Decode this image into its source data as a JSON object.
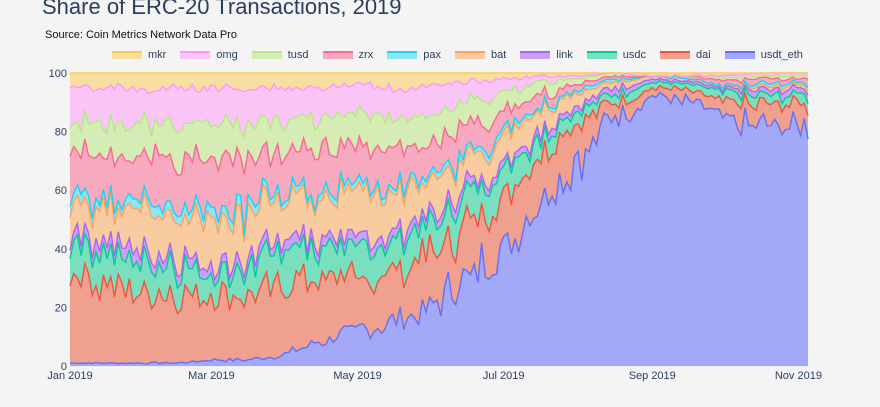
{
  "chart_data": {
    "type": "area",
    "stacked": true,
    "normalized": true,
    "title": "Share of ERC-20 Transactions, 2019",
    "subtitle": "Source: Coin Metrics Network Data Pro",
    "xlabel": "",
    "ylabel": "",
    "ylim": [
      0,
      100
    ],
    "yticks": [
      0,
      20,
      40,
      60,
      80,
      100
    ],
    "xticks": [
      "Jan 2019",
      "Mar 2019",
      "May 2019",
      "Jul 2019",
      "Sep 2019",
      "Nov 2019"
    ],
    "legend_position": "top",
    "grid": true,
    "x": [
      "2019-01-01",
      "2019-01-15",
      "2019-02-01",
      "2019-02-15",
      "2019-03-01",
      "2019-03-15",
      "2019-04-01",
      "2019-04-15",
      "2019-05-01",
      "2019-05-15",
      "2019-06-01",
      "2019-06-15",
      "2019-07-01",
      "2019-07-15",
      "2019-08-01",
      "2019-08-15",
      "2019-09-01",
      "2019-09-15",
      "2019-10-01",
      "2019-10-15",
      "2019-11-01",
      "2019-11-05"
    ],
    "series": [
      {
        "name": "usdt_eth",
        "color": "#636efa",
        "fill": "#a3a8f7",
        "values": [
          1,
          1,
          1,
          1,
          2,
          2,
          4,
          8,
          12,
          15,
          20,
          30,
          40,
          55,
          70,
          85,
          92,
          90,
          84,
          82,
          82,
          83
        ]
      },
      {
        "name": "dai",
        "color": "#ef553b",
        "fill": "#f0a08e",
        "values": [
          32,
          27,
          24,
          23,
          22,
          22,
          24,
          21,
          17,
          17,
          18,
          18,
          18,
          18,
          12,
          5,
          3,
          4,
          6,
          7,
          8,
          6
        ]
      },
      {
        "name": "usdc",
        "color": "#00cc96",
        "fill": "#7adfbe",
        "values": [
          12,
          12,
          10,
          9,
          8,
          9,
          14,
          11,
          11,
          10,
          10,
          10,
          9,
          6,
          5,
          3,
          2,
          2,
          3,
          3,
          3,
          3
        ]
      },
      {
        "name": "link",
        "color": "#ab63fa",
        "fill": "#c9a2f6",
        "values": [
          3,
          4,
          4,
          3,
          3,
          3,
          3,
          3,
          3,
          3,
          3,
          3,
          2,
          2,
          2,
          2,
          1,
          1,
          1,
          2,
          2,
          2
        ]
      },
      {
        "name": "bat",
        "color": "#ffa15a",
        "fill": "#f8cba0",
        "values": [
          9,
          12,
          13,
          14,
          16,
          17,
          12,
          14,
          15,
          14,
          12,
          10,
          9,
          7,
          4,
          2,
          1,
          1,
          1,
          1,
          1,
          1
        ]
      },
      {
        "name": "pax",
        "color": "#19d3f3",
        "fill": "#8fe4f4",
        "values": [
          3,
          3,
          3,
          3,
          3,
          3,
          2,
          2,
          2,
          2,
          2,
          2,
          2,
          1,
          1,
          1,
          0,
          0,
          0,
          1,
          1,
          1
        ]
      },
      {
        "name": "zrx",
        "color": "#ff6692",
        "fill": "#f6a9bf",
        "values": [
          14,
          15,
          16,
          17,
          17,
          16,
          14,
          14,
          14,
          13,
          11,
          9,
          7,
          4,
          2,
          1,
          0,
          1,
          2,
          2,
          1,
          2
        ]
      },
      {
        "name": "tusd",
        "color": "#b6e880",
        "fill": "#d5edb5",
        "values": [
          10,
          10,
          11,
          12,
          12,
          11,
          11,
          11,
          11,
          11,
          10,
          8,
          6,
          4,
          2,
          1,
          0,
          0,
          1,
          1,
          1,
          1
        ]
      },
      {
        "name": "omg",
        "color": "#ff97ff",
        "fill": "#f8c5f6",
        "values": [
          12,
          11,
          12,
          13,
          12,
          12,
          11,
          11,
          11,
          10,
          9,
          7,
          5,
          2,
          1,
          0,
          0,
          0,
          1,
          1,
          1,
          1
        ]
      },
      {
        "name": "mkr",
        "color": "#fecb52",
        "fill": "#f8dfa0",
        "values": [
          4,
          5,
          6,
          5,
          5,
          5,
          5,
          5,
          4,
          5,
          5,
          3,
          2,
          1,
          1,
          0,
          1,
          1,
          1,
          0,
          0,
          0
        ]
      }
    ],
    "legend_order": [
      "mkr",
      "omg",
      "tusd",
      "zrx",
      "pax",
      "bat",
      "link",
      "usdc",
      "dai",
      "usdt_eth"
    ]
  }
}
